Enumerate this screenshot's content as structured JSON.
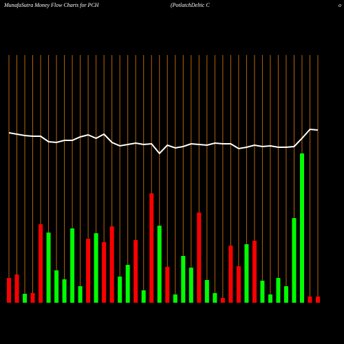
{
  "chart_data": {
    "type": "combo",
    "title": "MunafaSutra  Money Flow  Charts for PCH",
    "subtitle": "(PotlatchDeltic C",
    "subtitle_tail": "o",
    "background": "#000000",
    "grid": true,
    "grid_color": "#b8650a",
    "ylim": [
      0,
      360
    ],
    "series": [
      {
        "type": "bar",
        "values": [
          36,
          41,
          13,
          14,
          114,
          102,
          47,
          34,
          108,
          24,
          93,
          101,
          88,
          111,
          38,
          55,
          91,
          18,
          159,
          112,
          52,
          12,
          68,
          51,
          131,
          33,
          14,
          7,
          83,
          53,
          85,
          90,
          32,
          12,
          36,
          24,
          123,
          217,
          9,
          9
        ],
        "colors": [
          "#ff0000",
          "#ff0000",
          "#00ff00",
          "#ff0000",
          "#ff0000",
          "#00ff00",
          "#00ff00",
          "#00ff00",
          "#00ff00",
          "#00ff00",
          "#ff0000",
          "#00ff00",
          "#ff0000",
          "#ff0000",
          "#00ff00",
          "#00ff00",
          "#ff0000",
          "#00ff00",
          "#ff0000",
          "#00ff00",
          "#ff0000",
          "#00ff00",
          "#00ff00",
          "#00ff00",
          "#ff0000",
          "#00ff00",
          "#00ff00",
          "#ff0000",
          "#ff0000",
          "#ff0000",
          "#00ff00",
          "#ff0000",
          "#00ff00",
          "#00ff00",
          "#00ff00",
          "#00ff00",
          "#00ff00",
          "#00ff00",
          "#ff0000",
          "#ff0000"
        ]
      },
      {
        "type": "line",
        "color": "#ffffff",
        "values": [
          247,
          245,
          243,
          242,
          242,
          234,
          233,
          236,
          236,
          241,
          244,
          239,
          245,
          233,
          228,
          230,
          232,
          230,
          231,
          217,
          229,
          225,
          227,
          231,
          230,
          229,
          232,
          231,
          231,
          224,
          226,
          229,
          227,
          228,
          226,
          226,
          227,
          239,
          252,
          251
        ]
      }
    ]
  }
}
